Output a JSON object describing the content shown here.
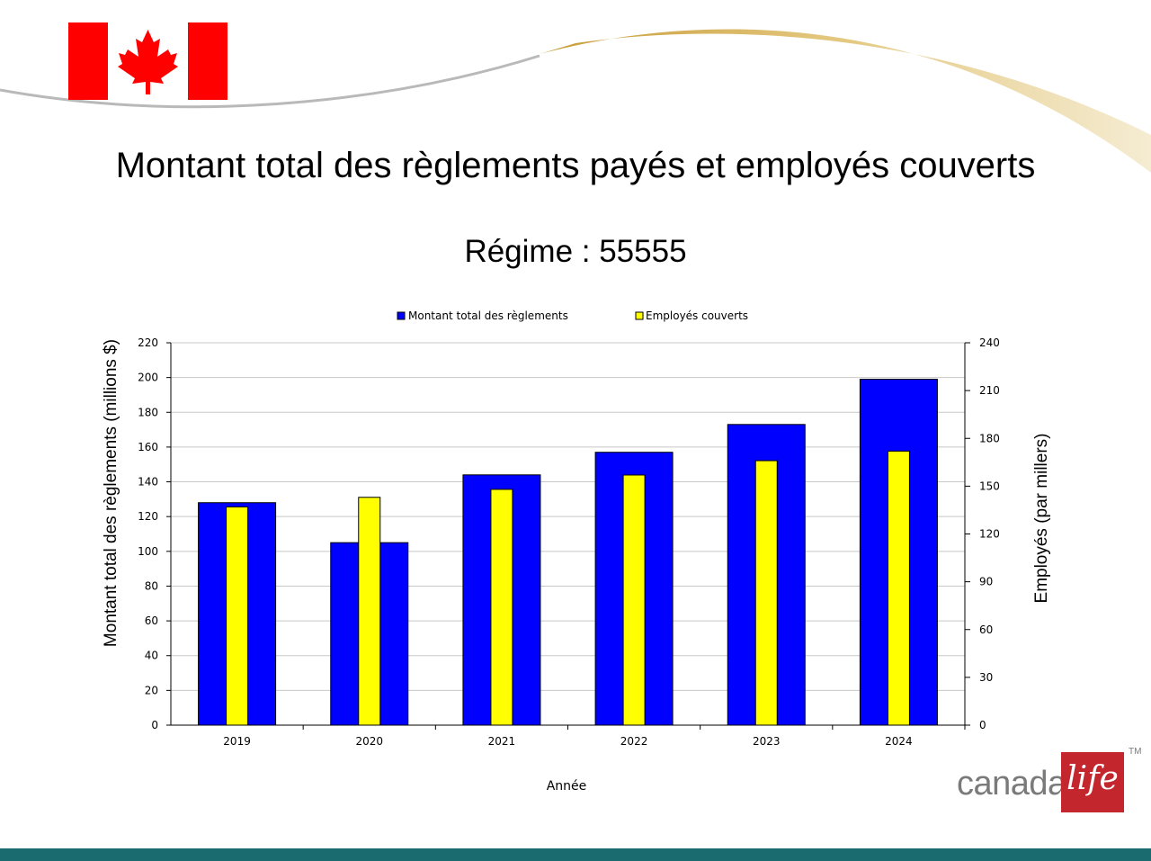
{
  "header": {
    "title": "Montant total des règlements payés et employés couverts",
    "subtitle": "Régime : 55555",
    "flag_icon": "canada-flag-icon"
  },
  "colors": {
    "bar_primary": "#0000ff",
    "bar_secondary": "#ffff00",
    "accent_gold": "#d8b45c",
    "brand_red": "#c4262e",
    "footer_teal": "#1a6b70"
  },
  "chart_data": {
    "type": "bar",
    "categories": [
      "2019",
      "2020",
      "2021",
      "2022",
      "2023",
      "2024"
    ],
    "series": [
      {
        "name": "Montant total des règlements",
        "axis": "left",
        "values": [
          128,
          105,
          144,
          157,
          173,
          199
        ]
      },
      {
        "name": "Employés couverts",
        "axis": "right",
        "values": [
          137,
          143,
          148,
          157,
          166,
          172
        ]
      }
    ],
    "xlabel": "Année",
    "ylabel": "Montant total des règlements (millions $)",
    "y2label": "Employés (par millers)",
    "ylim": [
      0,
      220
    ],
    "y2lim": [
      0,
      240
    ],
    "yticks": [
      0,
      20,
      40,
      60,
      80,
      100,
      120,
      140,
      160,
      180,
      200,
      220
    ],
    "y2ticks": [
      0,
      30,
      60,
      90,
      120,
      150,
      180,
      210,
      240
    ],
    "grid": true,
    "legend_position": "top"
  },
  "branding": {
    "logo_text": "canada",
    "logo_script": "life",
    "logo_tm": "TM"
  }
}
